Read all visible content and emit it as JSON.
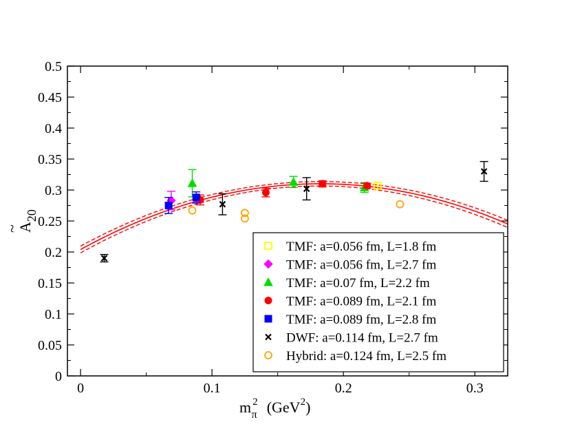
{
  "chart_data": {
    "type": "scatter",
    "title": "",
    "xlabel": {
      "base": "m",
      "sub": "π",
      "sup": "2",
      "unit_open": "(GeV",
      "unit_sup": "2",
      "unit_close": ")"
    },
    "ylabel": {
      "base": "A",
      "sub": "20",
      "accent": "~"
    },
    "xlim": [
      -0.01,
      0.325
    ],
    "ylim": [
      0,
      0.5
    ],
    "xticks": [
      0,
      0.1,
      0.2,
      0.3
    ],
    "xtick_labels": [
      "0",
      "0.1",
      "0.2",
      "0.3"
    ],
    "yticks": [
      0,
      0.05,
      0.1,
      0.15,
      0.2,
      0.25,
      0.3,
      0.35,
      0.4,
      0.45,
      0.5
    ],
    "ytick_labels": [
      "0",
      "0.05",
      "0.1",
      "0.15",
      "0.2",
      "0.25",
      "0.3",
      "0.35",
      "0.4",
      "0.45",
      "0.5"
    ],
    "legend_position": "bottom-right",
    "fit": {
      "color": "#ff0000",
      "central": {
        "a": 0.204,
        "b": 1.1635,
        "c": -3.1897
      },
      "band_halfwidth": 0.0055,
      "x_start": 0.0,
      "x_end": 0.325
    },
    "series": [
      {
        "name": "TMF: a=0.056 fm, L=1.8 fm",
        "marker": "square-open",
        "color": "#ffff00",
        "points": [
          {
            "x": 0.226,
            "y": 0.307,
            "err": 0.005
          }
        ]
      },
      {
        "name": "TMF: a=0.056 fm, L=2.7 fm",
        "marker": "diamond",
        "color": "#ff00ff",
        "points": [
          {
            "x": 0.069,
            "y": 0.283,
            "err": 0.015
          }
        ]
      },
      {
        "name": "TMF: a=0.07 fm, L=2.2 fm",
        "marker": "triangle",
        "color": "#00dd00",
        "points": [
          {
            "x": 0.085,
            "y": 0.311,
            "err": 0.022
          },
          {
            "x": 0.162,
            "y": 0.313,
            "err": 0.009
          },
          {
            "x": 0.216,
            "y": 0.304,
            "err": 0.008
          }
        ]
      },
      {
        "name": "TMF: a=0.089 fm, L=2.1 fm",
        "marker": "circle",
        "color": "#ff0000",
        "points": [
          {
            "x": 0.091,
            "y": 0.284,
            "err": 0.008
          },
          {
            "x": 0.141,
            "y": 0.296,
            "err": 0.007
          },
          {
            "x": 0.184,
            "y": 0.31,
            "err": 0.005
          },
          {
            "x": 0.218,
            "y": 0.307,
            "err": 0.004
          }
        ]
      },
      {
        "name": "TMF: a=0.089 fm, L=2.8 fm",
        "marker": "square",
        "color": "#0000ff",
        "points": [
          {
            "x": 0.067,
            "y": 0.275,
            "err": 0.013
          },
          {
            "x": 0.088,
            "y": 0.288,
            "err": 0.009
          }
        ]
      },
      {
        "name": "DWF: a=0.114 fm, L=2.7 fm",
        "marker": "cross",
        "color": "#000000",
        "points": [
          {
            "x": 0.018,
            "y": 0.19,
            "err": 0.006
          },
          {
            "x": 0.108,
            "y": 0.277,
            "err": 0.017
          },
          {
            "x": 0.172,
            "y": 0.302,
            "err": 0.018
          },
          {
            "x": 0.307,
            "y": 0.33,
            "err": 0.016
          }
        ]
      },
      {
        "name": "Hybrid: a=0.124 fm, L=2.5 fm",
        "marker": "circle-open",
        "color": "#ffa500",
        "points": [
          {
            "x": 0.085,
            "y": 0.267,
            "err": 0
          },
          {
            "x": 0.125,
            "y": 0.263,
            "err": 0
          },
          {
            "x": 0.125,
            "y": 0.254,
            "err": 0
          },
          {
            "x": 0.243,
            "y": 0.277,
            "err": 0
          }
        ]
      }
    ]
  }
}
